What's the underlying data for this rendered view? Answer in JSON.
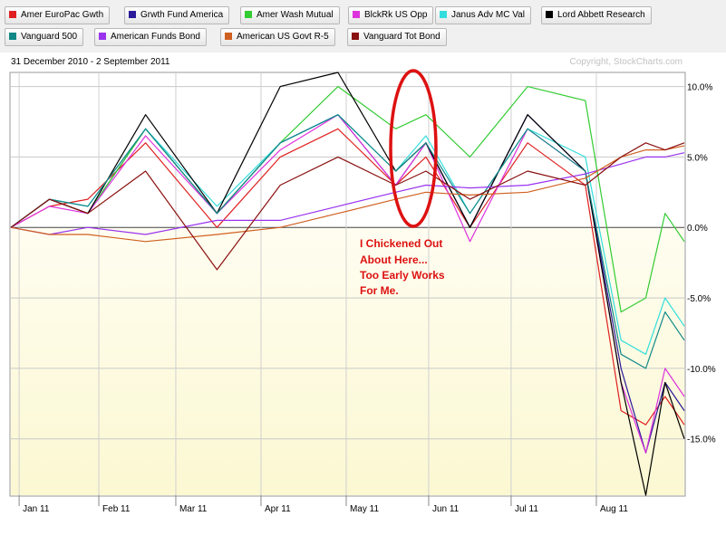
{
  "legend": {
    "items": [
      {
        "label": "Amer EuroPac Gwth",
        "color": "#e02020"
      },
      {
        "label": "Grwth Fund America",
        "color": "#2a1a99"
      },
      {
        "label": "Amer Wash Mutual",
        "color": "#33cc33"
      },
      {
        "label": "BlckRk US Opp",
        "color": "#dd33dd"
      },
      {
        "label": "Janus Adv MC Val",
        "color": "#33dddd"
      },
      {
        "label": "Lord Abbett Research",
        "color": "#000000"
      },
      {
        "label": "Vanguard 500",
        "color": "#118888"
      },
      {
        "label": "American Funds Bond",
        "color": "#9933ee"
      },
      {
        "label": "American US Govt R-5",
        "color": "#d06020"
      },
      {
        "label": "Vanguard Tot Bond",
        "color": "#8b1010"
      }
    ]
  },
  "header": {
    "date_range": "31 December 2010 - 2 September 2011",
    "copyright": "Copyright, StockCharts.com"
  },
  "annotation": {
    "lines": [
      "I Chickened Out",
      "About Here...",
      "Too Early Works",
      "For Me."
    ],
    "color": "#dd1111"
  },
  "chart_data": {
    "type": "line",
    "title": "",
    "x_range": [
      "2010-12-31",
      "2011-09-02"
    ],
    "ylim": [
      -19,
      11
    ],
    "y_ticks": [
      10,
      5,
      0,
      -5,
      -10,
      -15
    ],
    "y_tick_labels": [
      "10.0%",
      "5.0%",
      "0.0%",
      "-5.0%",
      "-10.0%",
      "-15.0%"
    ],
    "x_ticks": [
      "2011-01-03",
      "2011-02-01",
      "2011-03-01",
      "2011-04-01",
      "2011-05-02",
      "2011-06-01",
      "2011-07-01",
      "2011-08-01"
    ],
    "x_tick_labels": [
      "Jan 11",
      "Feb 11",
      "Mar 11",
      "Apr 11",
      "May 11",
      "Jun 11",
      "Jul 11",
      "Aug 11"
    ],
    "series": [
      {
        "name": "Amer EuroPac Gwth",
        "color": "#e02020",
        "points": [
          [
            "2010-12-31",
            0
          ],
          [
            "2011-01-14",
            1.5
          ],
          [
            "2011-01-28",
            2
          ],
          [
            "2011-02-18",
            6
          ],
          [
            "2011-03-16",
            0
          ],
          [
            "2011-04-08",
            5
          ],
          [
            "2011-04-29",
            7
          ],
          [
            "2011-05-20",
            3
          ],
          [
            "2011-05-31",
            5
          ],
          [
            "2011-06-16",
            0
          ],
          [
            "2011-07-07",
            6
          ],
          [
            "2011-07-28",
            3
          ],
          [
            "2011-08-10",
            -13
          ],
          [
            "2011-08-19",
            -14
          ],
          [
            "2011-08-26",
            -12
          ],
          [
            "2011-09-02",
            -14
          ]
        ]
      },
      {
        "name": "Grwth Fund America",
        "color": "#2a1a99",
        "points": [
          [
            "2010-12-31",
            0
          ],
          [
            "2011-01-14",
            2
          ],
          [
            "2011-01-28",
            1
          ],
          [
            "2011-02-18",
            7
          ],
          [
            "2011-03-16",
            1
          ],
          [
            "2011-04-08",
            6
          ],
          [
            "2011-04-29",
            8
          ],
          [
            "2011-05-20",
            3
          ],
          [
            "2011-05-31",
            6
          ],
          [
            "2011-06-16",
            0
          ],
          [
            "2011-07-07",
            8
          ],
          [
            "2011-07-28",
            4
          ],
          [
            "2011-08-10",
            -10
          ],
          [
            "2011-08-19",
            -16
          ],
          [
            "2011-08-26",
            -11
          ],
          [
            "2011-09-02",
            -13
          ]
        ]
      },
      {
        "name": "Amer Wash Mutual",
        "color": "#33cc33",
        "points": [
          [
            "2010-12-31",
            0
          ],
          [
            "2011-01-14",
            2
          ],
          [
            "2011-01-28",
            1
          ],
          [
            "2011-02-18",
            7
          ],
          [
            "2011-03-16",
            1
          ],
          [
            "2011-04-08",
            6
          ],
          [
            "2011-04-29",
            10
          ],
          [
            "2011-05-20",
            7
          ],
          [
            "2011-05-31",
            8
          ],
          [
            "2011-06-16",
            5
          ],
          [
            "2011-07-07",
            10
          ],
          [
            "2011-07-28",
            9
          ],
          [
            "2011-08-10",
            -6
          ],
          [
            "2011-08-19",
            -5
          ],
          [
            "2011-08-26",
            1
          ],
          [
            "2011-09-02",
            -1
          ]
        ]
      },
      {
        "name": "BlckRk US Opp",
        "color": "#dd33dd",
        "points": [
          [
            "2010-12-31",
            0
          ],
          [
            "2011-01-14",
            1.5
          ],
          [
            "2011-01-28",
            1
          ],
          [
            "2011-02-18",
            6.5
          ],
          [
            "2011-03-16",
            1
          ],
          [
            "2011-04-08",
            5.5
          ],
          [
            "2011-04-29",
            8
          ],
          [
            "2011-05-20",
            3
          ],
          [
            "2011-05-31",
            6
          ],
          [
            "2011-06-16",
            -1
          ],
          [
            "2011-07-07",
            7
          ],
          [
            "2011-07-28",
            4
          ],
          [
            "2011-08-10",
            -11
          ],
          [
            "2011-08-19",
            -16
          ],
          [
            "2011-08-26",
            -10
          ],
          [
            "2011-09-02",
            -12
          ]
        ]
      },
      {
        "name": "Janus Adv MC Val",
        "color": "#33dddd",
        "points": [
          [
            "2010-12-31",
            0
          ],
          [
            "2011-01-14",
            2
          ],
          [
            "2011-01-28",
            1.5
          ],
          [
            "2011-02-18",
            7
          ],
          [
            "2011-03-16",
            1.5
          ],
          [
            "2011-04-08",
            6
          ],
          [
            "2011-04-29",
            8
          ],
          [
            "2011-05-20",
            4
          ],
          [
            "2011-05-31",
            6.5
          ],
          [
            "2011-06-16",
            1
          ],
          [
            "2011-07-07",
            7
          ],
          [
            "2011-07-28",
            5
          ],
          [
            "2011-08-10",
            -8
          ],
          [
            "2011-08-19",
            -9
          ],
          [
            "2011-08-26",
            -5
          ],
          [
            "2011-09-02",
            -7
          ]
        ]
      },
      {
        "name": "Lord Abbett Research",
        "color": "#000000",
        "points": [
          [
            "2010-12-31",
            0
          ],
          [
            "2011-01-14",
            2
          ],
          [
            "2011-01-28",
            1
          ],
          [
            "2011-02-18",
            8
          ],
          [
            "2011-03-16",
            1
          ],
          [
            "2011-04-08",
            10
          ],
          [
            "2011-04-29",
            11
          ],
          [
            "2011-05-20",
            4
          ],
          [
            "2011-05-31",
            6
          ],
          [
            "2011-06-16",
            0
          ],
          [
            "2011-07-07",
            8
          ],
          [
            "2011-07-28",
            4
          ],
          [
            "2011-08-10",
            -11
          ],
          [
            "2011-08-19",
            -19
          ],
          [
            "2011-08-26",
            -11
          ],
          [
            "2011-09-02",
            -15
          ]
        ]
      },
      {
        "name": "Vanguard 500",
        "color": "#118888",
        "points": [
          [
            "2010-12-31",
            0
          ],
          [
            "2011-01-14",
            2
          ],
          [
            "2011-01-28",
            1.5
          ],
          [
            "2011-02-18",
            7
          ],
          [
            "2011-03-16",
            1
          ],
          [
            "2011-04-08",
            6
          ],
          [
            "2011-04-29",
            8
          ],
          [
            "2011-05-20",
            4
          ],
          [
            "2011-05-31",
            6
          ],
          [
            "2011-06-16",
            1
          ],
          [
            "2011-07-07",
            7
          ],
          [
            "2011-07-28",
            4
          ],
          [
            "2011-08-10",
            -9
          ],
          [
            "2011-08-19",
            -10
          ],
          [
            "2011-08-26",
            -6
          ],
          [
            "2011-09-02",
            -8
          ]
        ]
      },
      {
        "name": "American Funds Bond",
        "color": "#9933ee",
        "points": [
          [
            "2010-12-31",
            0
          ],
          [
            "2011-01-14",
            -0.5
          ],
          [
            "2011-01-28",
            0
          ],
          [
            "2011-02-18",
            -0.5
          ],
          [
            "2011-03-16",
            0.5
          ],
          [
            "2011-04-08",
            0.5
          ],
          [
            "2011-04-29",
            1.5
          ],
          [
            "2011-05-20",
            2.5
          ],
          [
            "2011-05-31",
            3
          ],
          [
            "2011-06-16",
            2.8
          ],
          [
            "2011-07-07",
            3
          ],
          [
            "2011-07-28",
            3.8
          ],
          [
            "2011-08-10",
            4.5
          ],
          [
            "2011-08-19",
            5
          ],
          [
            "2011-08-26",
            5
          ],
          [
            "2011-09-02",
            5.3
          ]
        ]
      },
      {
        "name": "American US Govt R-5",
        "color": "#d06020",
        "points": [
          [
            "2010-12-31",
            0
          ],
          [
            "2011-01-14",
            -0.5
          ],
          [
            "2011-01-28",
            -0.5
          ],
          [
            "2011-02-18",
            -1
          ],
          [
            "2011-03-16",
            -0.5
          ],
          [
            "2011-04-08",
            0
          ],
          [
            "2011-04-29",
            1
          ],
          [
            "2011-05-20",
            2
          ],
          [
            "2011-05-31",
            2.5
          ],
          [
            "2011-06-16",
            2.3
          ],
          [
            "2011-07-07",
            2.5
          ],
          [
            "2011-07-28",
            3.5
          ],
          [
            "2011-08-10",
            5
          ],
          [
            "2011-08-19",
            5.5
          ],
          [
            "2011-08-26",
            5.5
          ],
          [
            "2011-09-02",
            5.8
          ]
        ]
      },
      {
        "name": "Vanguard Tot Bond",
        "color": "#8b1010",
        "points": [
          [
            "2010-12-31",
            0
          ],
          [
            "2011-01-14",
            2
          ],
          [
            "2011-01-28",
            1
          ],
          [
            "2011-02-18",
            4
          ],
          [
            "2011-03-16",
            -3
          ],
          [
            "2011-04-08",
            3
          ],
          [
            "2011-04-29",
            5
          ],
          [
            "2011-05-20",
            3
          ],
          [
            "2011-05-31",
            4
          ],
          [
            "2011-06-16",
            2
          ],
          [
            "2011-07-07",
            4
          ],
          [
            "2011-07-28",
            3
          ],
          [
            "2011-08-10",
            5
          ],
          [
            "2011-08-19",
            6
          ],
          [
            "2011-08-26",
            5.5
          ],
          [
            "2011-09-02",
            6
          ]
        ]
      }
    ]
  }
}
